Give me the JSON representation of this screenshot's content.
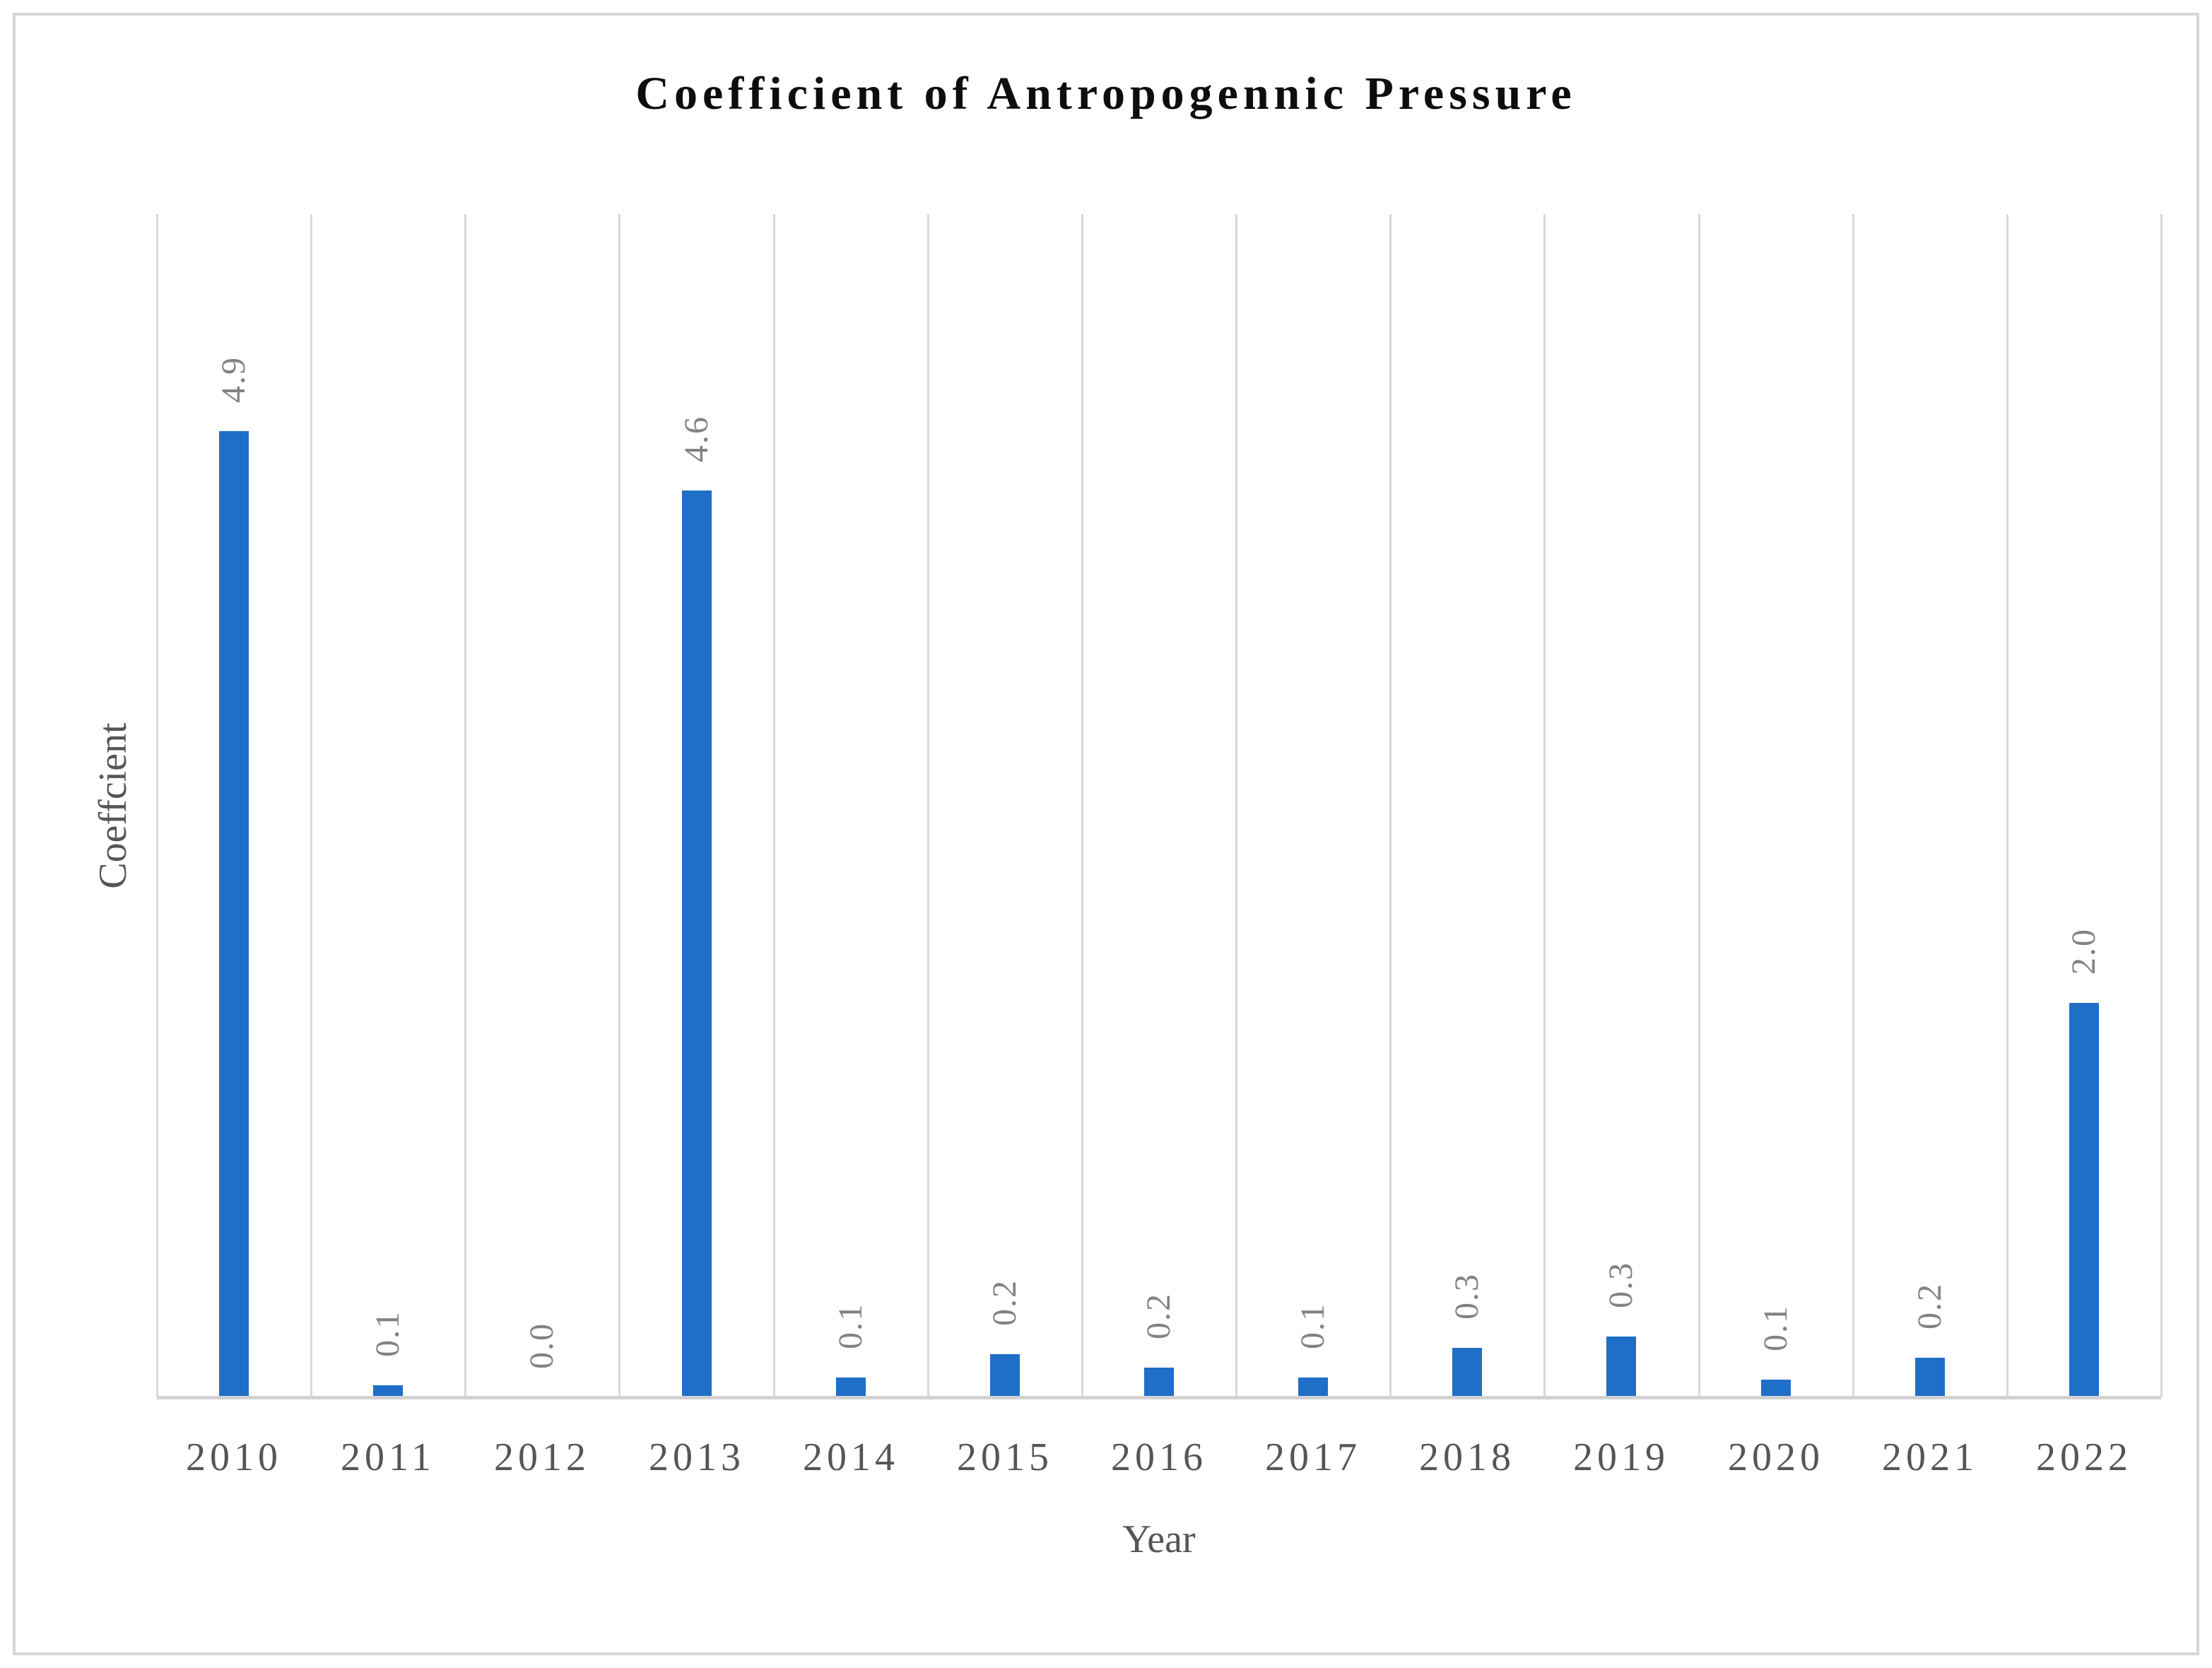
{
  "title": "Coefficient of Antropogennic Pressure",
  "chart_data": {
    "type": "bar",
    "title": "Coefficient of Antropogennic Pressure",
    "xlabel": "Year",
    "ylabel": "Coeffcient",
    "categories": [
      "2010",
      "2011",
      "2012",
      "2013",
      "2014",
      "2015",
      "2016",
      "2017",
      "2018",
      "2019",
      "2020",
      "2021",
      "2022"
    ],
    "values": [
      4.9,
      0.1,
      0.0,
      4.6,
      0.1,
      0.2,
      0.2,
      0.1,
      0.3,
      0.3,
      0.1,
      0.2,
      2.0
    ],
    "data_labels": [
      "4.9",
      "0.1",
      "0.0",
      "4.6",
      "0.1",
      "0.2",
      "0.2",
      "0.1",
      "0.3",
      "0.3",
      "0.1",
      "0.2",
      "2.0"
    ],
    "render_values": [
      4.9,
      0.06,
      0.0,
      4.6,
      0.1,
      0.22,
      0.15,
      0.1,
      0.25,
      0.31,
      0.09,
      0.2,
      2.0
    ],
    "ylim": [
      0,
      6
    ],
    "grid": "vertical-only",
    "legend": "none",
    "data_label_rotation": -90,
    "bar_color": "#1F6FC8",
    "gridline_color": "#D9D9D9",
    "axis_line_color": "#D2D2D2",
    "data_label_color": "#828282",
    "axis_text_color": "#565656",
    "title_color": "#0d0d0d"
  }
}
